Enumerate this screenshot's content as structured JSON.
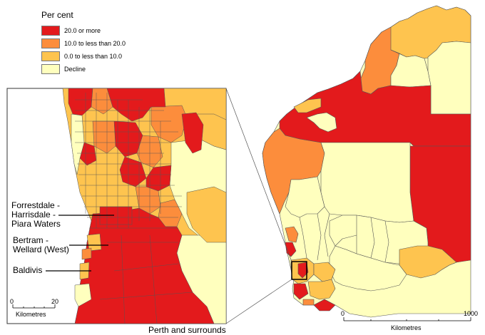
{
  "legend": {
    "title": "Per cent",
    "items": [
      {
        "label": "20.0 or more",
        "color": "#e31a1c"
      },
      {
        "label": "10.0 to less than 20.0",
        "color": "#fc8d3c"
      },
      {
        "label": "0.0 to less than 10.0",
        "color": "#fec44f"
      },
      {
        "label": "Decline",
        "color": "#ffffbe"
      }
    ]
  },
  "callouts": {
    "forrestdale": "Forrestdale -\nHarrisdale -\nPiara Waters",
    "bertram": "Bertram -\nWellard (West)",
    "baldivis": "Baldivis"
  },
  "inset_scale": {
    "min": "0",
    "max": "20",
    "unit": "Kilometres"
  },
  "main_scale": {
    "min": "0",
    "max": "1000",
    "unit": "Kilometres"
  },
  "inset_caption": "Perth and surrounds"
}
